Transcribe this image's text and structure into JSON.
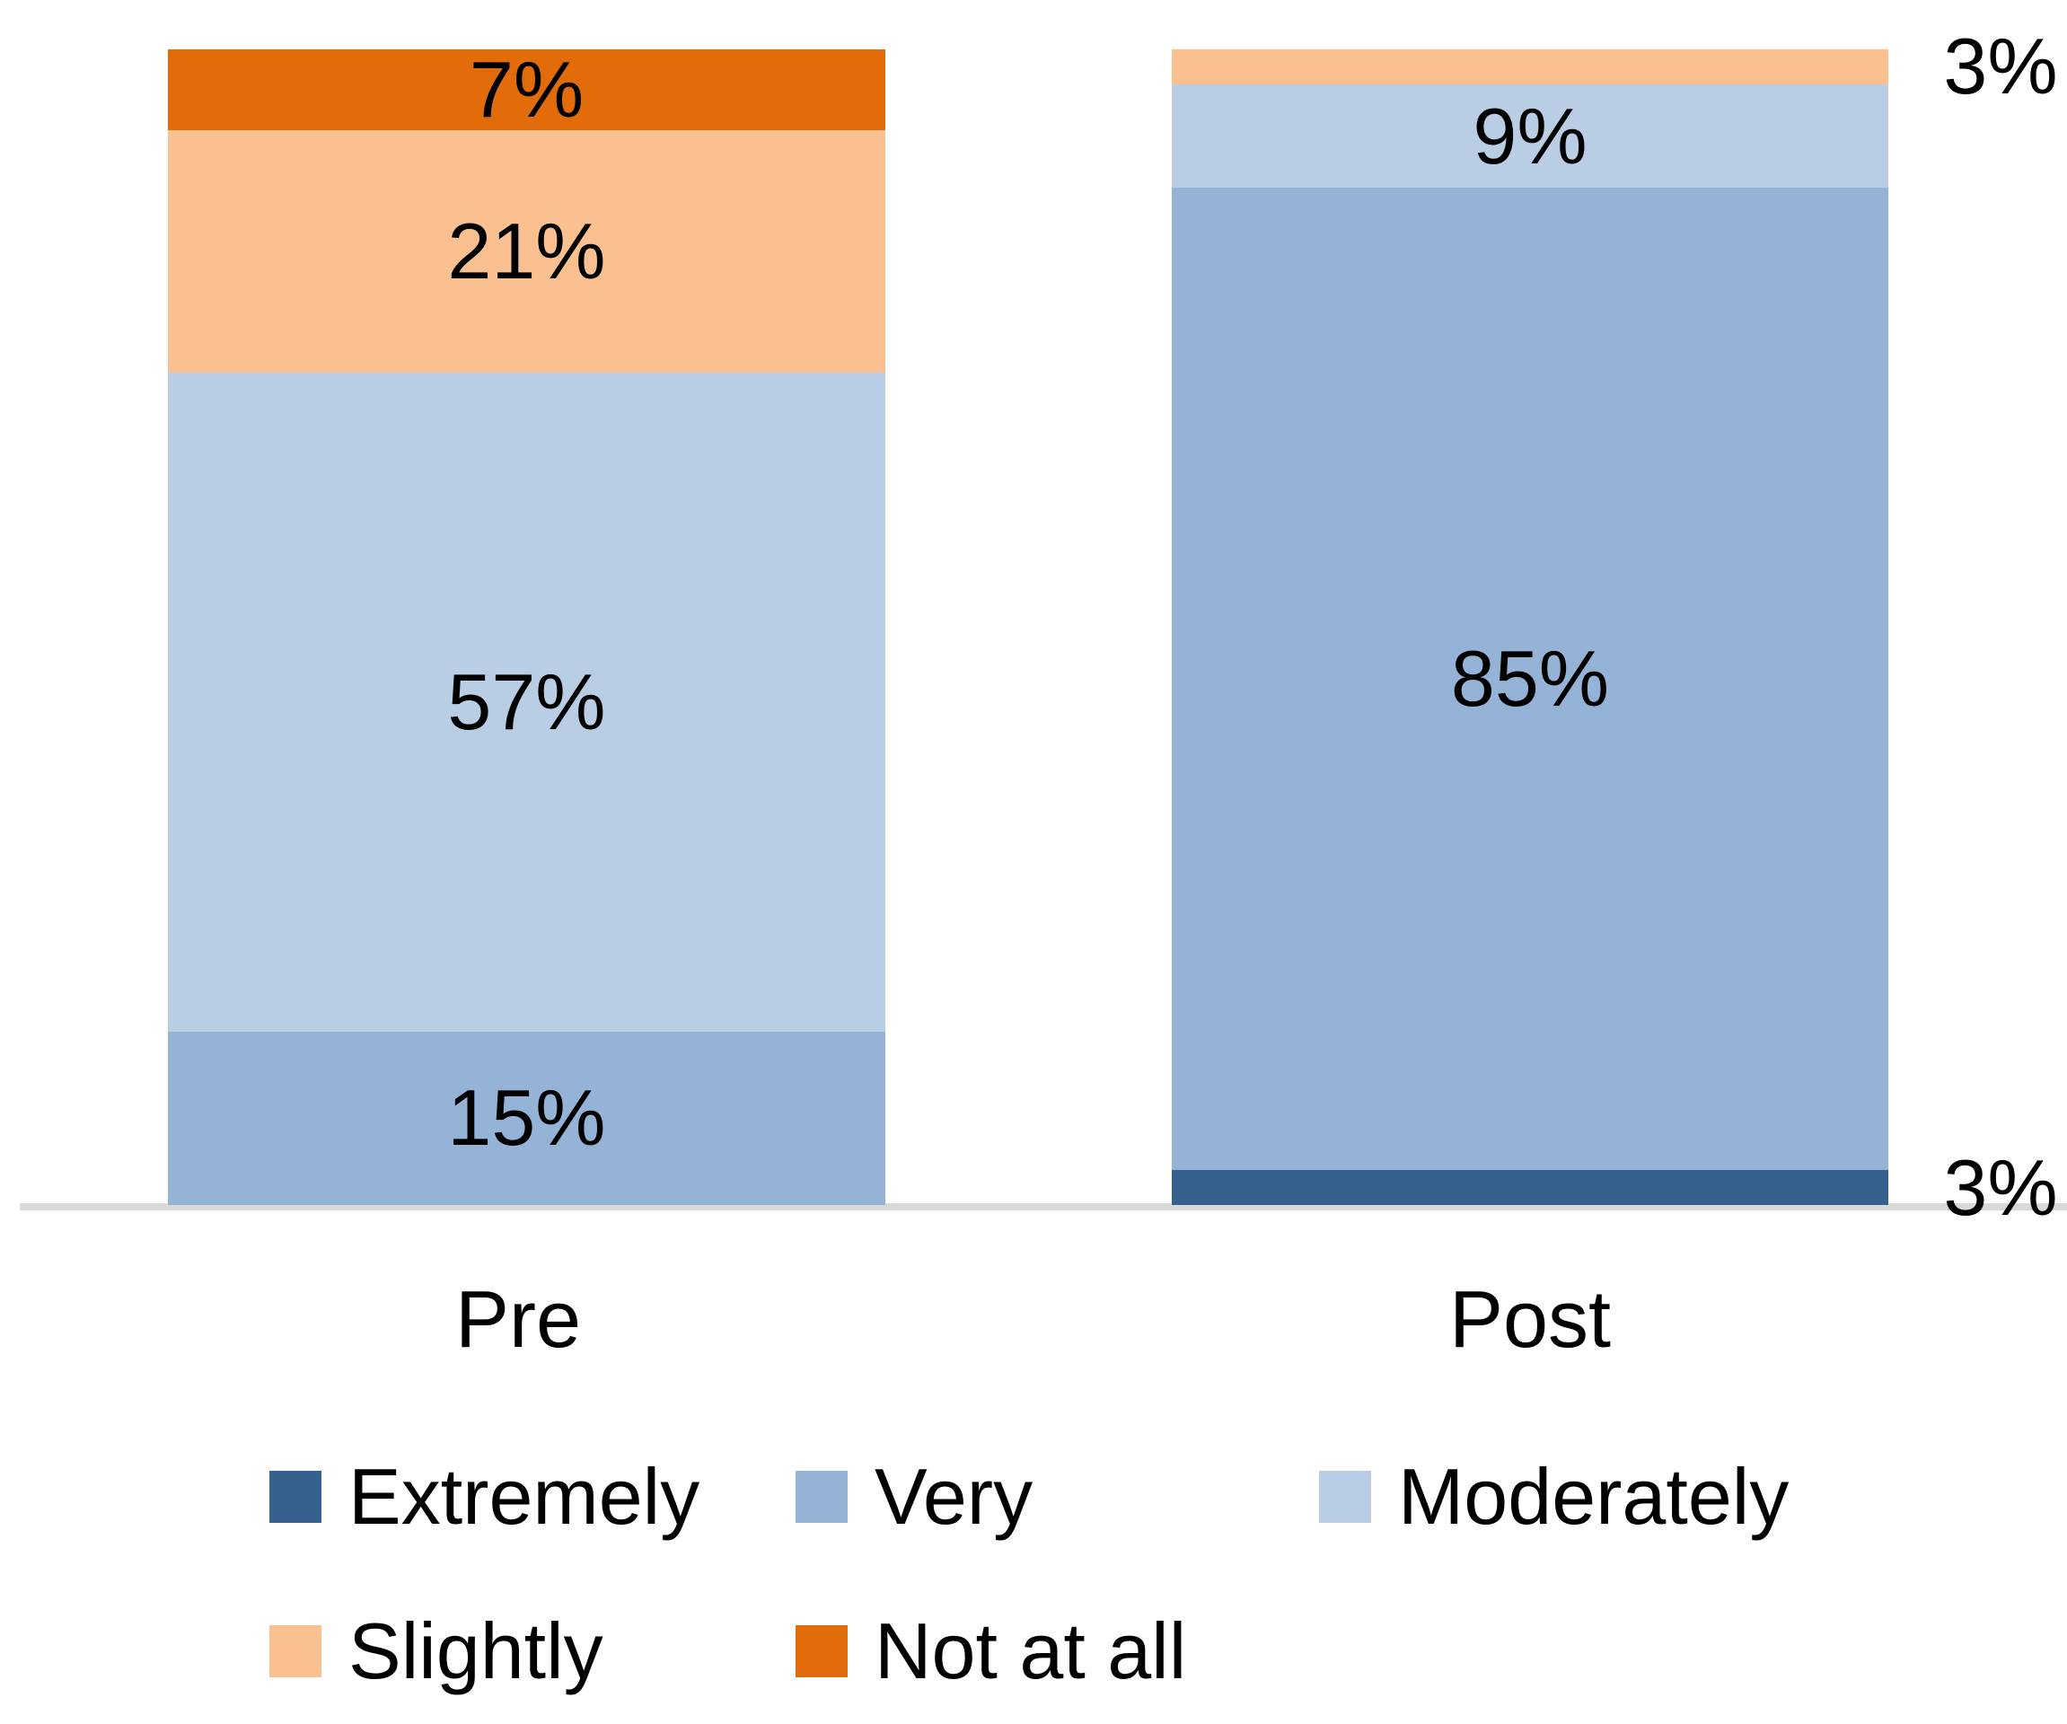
{
  "chart_data": {
    "type": "bar",
    "subtype": "stacked-100-percent",
    "title": "",
    "categories": [
      "Pre",
      "Post"
    ],
    "legend": [
      {
        "name": "Extremely",
        "color": "#36618F"
      },
      {
        "name": "Very",
        "color": "#95B3D7"
      },
      {
        "name": "Moderately",
        "color": "#B9CDE4"
      },
      {
        "name": "Slightly",
        "color": "#FAC090"
      },
      {
        "name": "Not at all",
        "color": "#E26C09"
      }
    ],
    "legend_rows": [
      [
        "Extremely",
        "Very",
        "Moderately"
      ],
      [
        "Slightly",
        "Not at all"
      ]
    ],
    "series": [
      {
        "name": "Extremely",
        "values": [
          0,
          3
        ]
      },
      {
        "name": "Very",
        "values": [
          15,
          85
        ]
      },
      {
        "name": "Moderately",
        "values": [
          57,
          9
        ]
      },
      {
        "name": "Slightly",
        "values": [
          21,
          3
        ]
      },
      {
        "name": "Not at all",
        "values": [
          7,
          0
        ]
      }
    ],
    "bars": [
      {
        "category": "Pre",
        "segments": [
          {
            "series": "Not at all",
            "value": 7,
            "label": "7%",
            "label_position": "inside"
          },
          {
            "series": "Slightly",
            "value": 21,
            "label": "21%",
            "label_position": "inside"
          },
          {
            "series": "Moderately",
            "value": 57,
            "label": "57%",
            "label_position": "inside"
          },
          {
            "series": "Very",
            "value": 15,
            "label": "15%",
            "label_position": "inside"
          }
        ]
      },
      {
        "category": "Post",
        "segments": [
          {
            "series": "Slightly",
            "value": 3,
            "label": "3%",
            "label_position": "outside-right"
          },
          {
            "series": "Moderately",
            "value": 9,
            "label": "9%",
            "label_position": "inside"
          },
          {
            "series": "Very",
            "value": 85,
            "label": "85%",
            "label_position": "inside"
          },
          {
            "series": "Extremely",
            "value": 3,
            "label": "3%",
            "label_position": "outside-right"
          }
        ]
      }
    ],
    "axis": {
      "baseline_color": "#D9D9D9",
      "value_range": [
        0,
        100
      ],
      "gridlines": false,
      "legend_position": "bottom"
    }
  }
}
